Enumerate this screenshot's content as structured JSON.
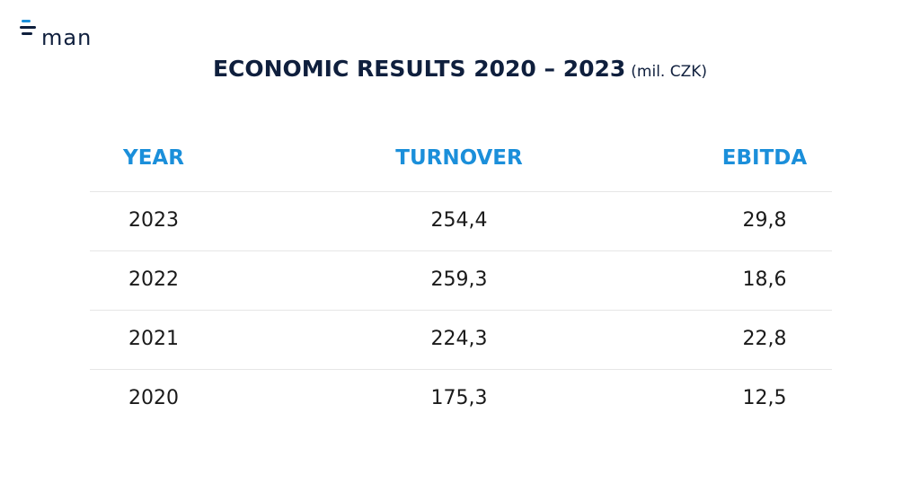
{
  "logo": "man",
  "header": {
    "title": "ECONOMIC RESULTS 2020 – 2023",
    "unit": "(mil. CZK)"
  },
  "table": {
    "columns": [
      "YEAR",
      "TURNOVER",
      "EBITDA"
    ],
    "rows": [
      [
        "2023",
        "254,4",
        "29,8"
      ],
      [
        "2022",
        "259,3",
        "18,6"
      ],
      [
        "2021",
        "224,3",
        "22,8"
      ],
      [
        "2020",
        "175,3",
        "12,5"
      ]
    ]
  }
}
